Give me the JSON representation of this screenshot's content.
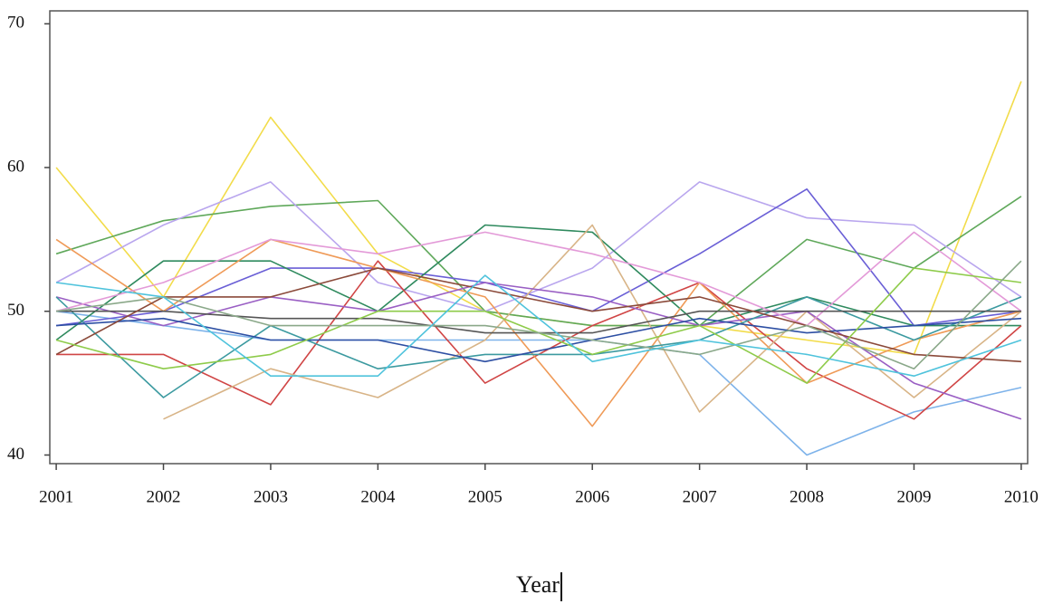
{
  "chart_data": {
    "type": "line",
    "xlabel": "Year",
    "x": [
      2001,
      2002,
      2003,
      2004,
      2005,
      2006,
      2007,
      2008,
      2009,
      2010
    ],
    "xlim": [
      2000.94,
      2010.06
    ],
    "xticks": [
      2001,
      2002,
      2003,
      2004,
      2005,
      2006,
      2007,
      2008,
      2009,
      2010
    ],
    "ylim": [
      39.4,
      70.9
    ],
    "yticks": [
      40,
      50,
      60,
      70
    ],
    "series": [
      {
        "color": "#f2dc4a",
        "values": [
          60,
          51,
          63.5,
          54,
          50,
          49,
          49,
          48,
          47,
          66
        ]
      },
      {
        "color": "#5fa85a",
        "values": [
          54,
          56.3,
          57.3,
          57.7,
          50,
          49,
          49,
          55,
          53,
          58
        ]
      },
      {
        "color": "#b9a6ee",
        "values": [
          52,
          56,
          59,
          52,
          50,
          53,
          59,
          56.5,
          56,
          51
        ]
      },
      {
        "color": "#7eb3ea",
        "values": [
          50,
          49,
          48,
          48,
          48,
          48,
          47,
          40,
          43,
          44.7
        ]
      },
      {
        "color": "#6a5fd6",
        "values": [
          49,
          50,
          53,
          53,
          52,
          50,
          54,
          58.5,
          49,
          50
        ]
      },
      {
        "color": "#2f8a5e",
        "values": [
          48,
          53.5,
          53.5,
          50,
          56,
          55.5,
          49,
          51,
          49,
          49
        ]
      },
      {
        "color": "#d04545",
        "values": [
          47,
          47,
          43.5,
          53.5,
          45,
          49,
          52,
          46,
          42.5,
          49
        ]
      },
      {
        "color": "#ef9a57",
        "values": [
          55,
          50,
          55,
          53,
          51,
          42,
          52,
          45,
          48,
          50
        ]
      },
      {
        "color": "#d8b487",
        "values": [
          null,
          42.5,
          46,
          44,
          48,
          56,
          43,
          50,
          44,
          50
        ]
      },
      {
        "color": "#9a5fc4",
        "values": [
          51,
          49,
          51,
          50,
          52,
          51,
          49,
          50,
          45,
          42.5
        ]
      },
      {
        "color": "#3c9aa0",
        "values": [
          51,
          44,
          49,
          46,
          47,
          47,
          48,
          51,
          48,
          51
        ]
      },
      {
        "color": "#e39ad8",
        "values": [
          50,
          52,
          55,
          54,
          55.5,
          54,
          52,
          49,
          55.5,
          50
        ]
      },
      {
        "color": "#555555",
        "values": [
          50,
          50,
          49.5,
          49.5,
          48.5,
          48.5,
          50,
          50,
          50,
          50
        ]
      },
      {
        "color": "#2d4fa3",
        "values": [
          49,
          49.5,
          48,
          48,
          46.5,
          48,
          49.5,
          48.5,
          49,
          49.5
        ]
      },
      {
        "color": "#8b4a3a",
        "values": [
          47,
          51,
          51,
          53,
          51.5,
          50,
          51,
          49,
          47,
          46.5
        ]
      },
      {
        "color": "#8ecb4a",
        "values": [
          48,
          46,
          47,
          50,
          50,
          47,
          49,
          45,
          53,
          52
        ]
      },
      {
        "color": "#8aa889",
        "values": [
          50,
          51,
          49,
          49,
          49,
          48,
          47,
          49,
          46,
          53.5
        ]
      },
      {
        "color": "#4fc3dc",
        "values": [
          52,
          51,
          45.5,
          45.5,
          52.5,
          46.5,
          48,
          47,
          45.5,
          48
        ]
      }
    ]
  }
}
